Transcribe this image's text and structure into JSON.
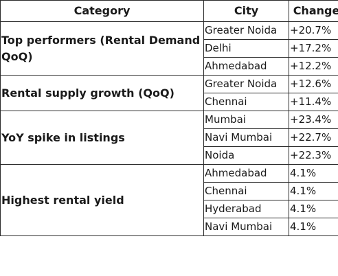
{
  "header": {
    "category": "Category",
    "city": "City",
    "change": "Change"
  },
  "groups": [
    {
      "category": "Top performers (Rental Demand QoQ)",
      "rows": [
        {
          "city": "Greater Noida",
          "change": "+20.7%"
        },
        {
          "city": "Delhi",
          "change": "+17.2%"
        },
        {
          "city": "Ahmedabad",
          "change": "+12.2%"
        }
      ]
    },
    {
      "category": "Rental supply growth (QoQ)",
      "rows": [
        {
          "city": "Greater Noida",
          "change": "+12.6%"
        },
        {
          "city": "Chennai",
          "change": "+11.4%"
        }
      ]
    },
    {
      "category": "YoY spike in listings",
      "rows": [
        {
          "city": "Mumbai",
          "change": "+23.4%"
        },
        {
          "city": "Navi Mumbai",
          "change": "+22.7%"
        },
        {
          "city": "Noida",
          "change": "+22.3%"
        }
      ]
    },
    {
      "category": "Highest rental yield",
      "rows": [
        {
          "city": "Ahmedabad",
          "change": "4.1%"
        },
        {
          "city": "Chennai",
          "change": "4.1%"
        },
        {
          "city": "Hyderabad",
          "change": "4.1%"
        },
        {
          "city": "Navi Mumbai",
          "change": "4.1%"
        }
      ]
    }
  ]
}
